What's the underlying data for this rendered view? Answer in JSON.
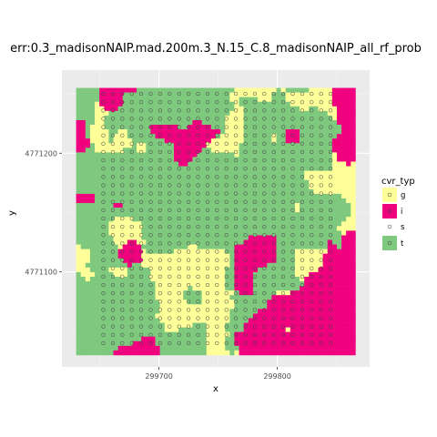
{
  "chart_data": {
    "type": "heatmap",
    "title": "err:0.3_madisonNAIP.mad.200m.3_N.15_C.8_madisonNAIP_all_rf_prob",
    "xlabel": "x",
    "ylabel": "y",
    "x_ticks": [
      "299700",
      "299800"
    ],
    "y_ticks": [
      "4771200",
      "4771100"
    ],
    "xlim": [
      299618,
      299878
    ],
    "ylim": [
      4771020,
      4771270
    ],
    "grid": true,
    "legend": {
      "title": "cvr_typ",
      "position": "right",
      "entries": [
        {
          "label": "g",
          "fill": "#ffff99",
          "point": "#ffff99"
        },
        {
          "label": "i",
          "fill": "#f0027f",
          "point": "#f0027f"
        },
        {
          "label": "s",
          "fill": "#ffffff",
          "point": "#ffffff"
        },
        {
          "label": "t",
          "fill": "#7fc97f",
          "point": "#7fc97f"
        }
      ]
    },
    "raster_extent": {
      "x": [
        299630,
        299866
      ],
      "y": [
        4771030,
        4771255
      ]
    },
    "point_grid": {
      "x_step": 8,
      "y_step": 7,
      "x_range": [
        299653,
        299845
      ],
      "y_range": [
        4771040,
        4771250
      ]
    }
  },
  "colors": {
    "panel": "#ebebeb",
    "grid_major": "#ffffff",
    "grid_minor": "#f5f5f5",
    "t": "#7fc97f",
    "i": "#f0027f",
    "g": "#ffff99"
  }
}
